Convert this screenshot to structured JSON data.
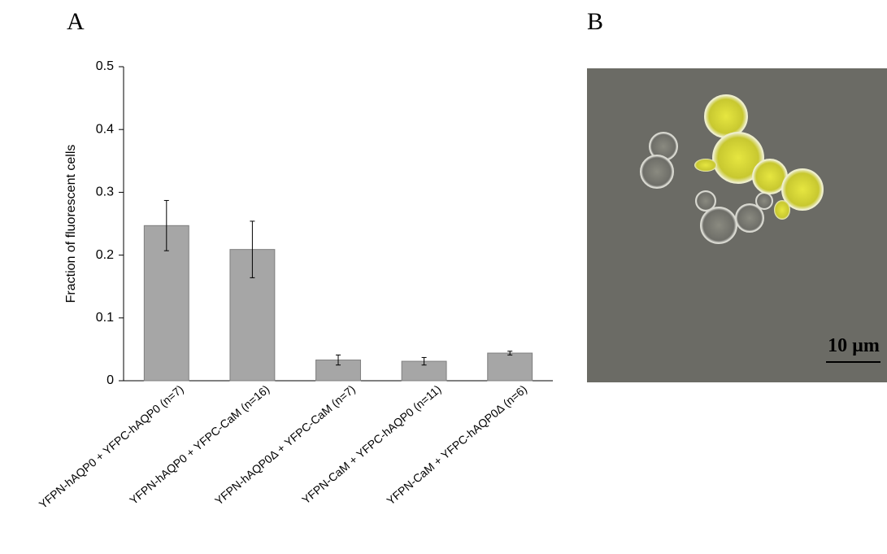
{
  "panel_labels": [
    "A",
    "B"
  ],
  "chart_data": {
    "type": "bar",
    "y_label": "Fraction of fluorescent cells",
    "categories": [
      "YFPN-hAQP0 + YFPC-hAQP0 (n=7)",
      "YFPN-hAQP0 + YFPC-CaM (n=16)",
      "YFPN-hAQP0Δ + YFPC-CaM (n=7)",
      "YFPN-CaM + YFPC-hAQP0 (n=11)",
      "YFPN-CaM + YFPC-hAQP0Δ (n=6)"
    ],
    "values": [
      0.247,
      0.209,
      0.033,
      0.031,
      0.044
    ],
    "errors": [
      0.04,
      0.045,
      0.008,
      0.006,
      0.003
    ],
    "color": "#a6a6a6",
    "ylim": [
      0,
      0.5
    ],
    "yticks": [
      0,
      0.1,
      0.2,
      0.3,
      0.4,
      0.5
    ],
    "grid": false
  },
  "image": {
    "scale_bar": "10 µm"
  }
}
